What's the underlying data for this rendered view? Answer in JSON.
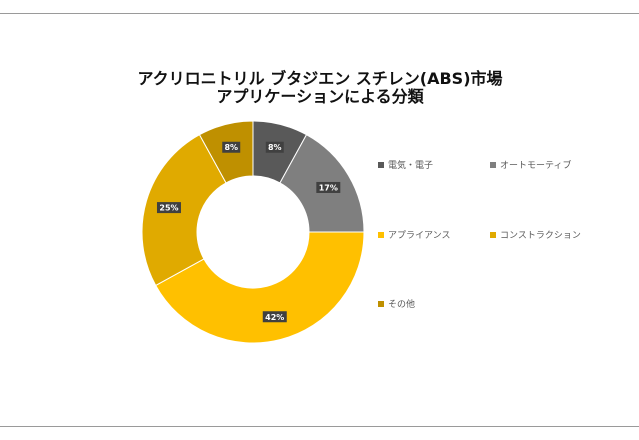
{
  "chart_data": {
    "type": "pie",
    "donut": true,
    "title_lines": [
      "アクリロニトリル ブタジエン スチレン(ABS)市場",
      "アプリケーションによる分類"
    ],
    "categories": [
      "電気・電子",
      "オートモーティブ",
      "アプライアンス",
      "コンストラクション",
      "その他"
    ],
    "values": [
      8,
      17,
      42,
      25,
      8
    ],
    "labels": [
      "8%",
      "17%",
      "42%",
      "25%",
      "8%"
    ],
    "colors": [
      "#595959",
      "#7f7f7f",
      "#ffc000",
      "#e0aa00",
      "#bf9000"
    ],
    "legend_position": "right"
  }
}
